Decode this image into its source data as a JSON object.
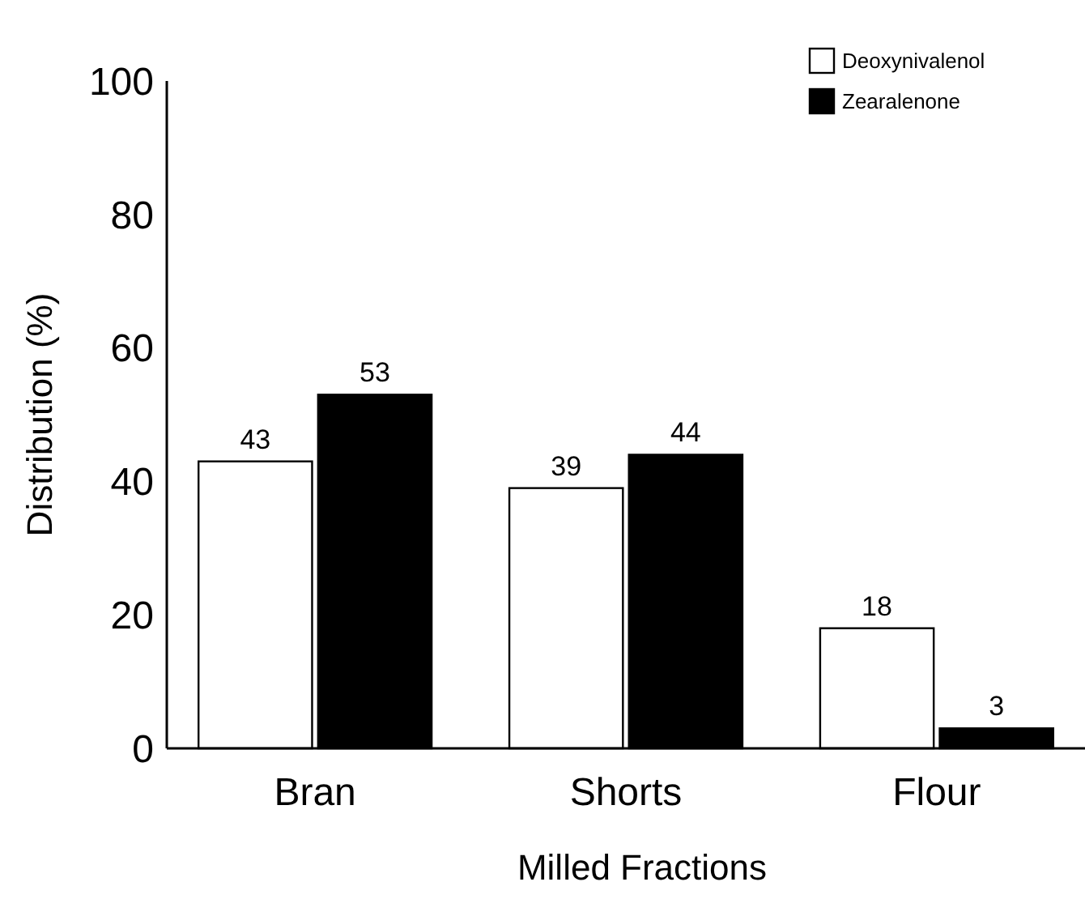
{
  "chart_data": {
    "type": "bar",
    "xlabel": "Milled Fractions",
    "ylabel": "Distribution (%)",
    "categories": [
      "Bran",
      "Shorts",
      "Flour"
    ],
    "series": [
      {
        "name": "Deoxynivalenol",
        "color": "#ffffff",
        "values": [
          43,
          39,
          18
        ]
      },
      {
        "name": "Zearalenone",
        "color": "#000000",
        "values": [
          53,
          44,
          3
        ]
      }
    ],
    "ylim": [
      0,
      100
    ],
    "yticks": [
      0,
      20,
      40,
      60,
      80,
      100
    ],
    "data_labels": true,
    "legend": "top right",
    "grid": false
  }
}
